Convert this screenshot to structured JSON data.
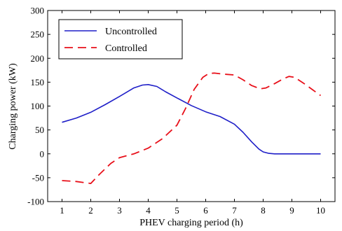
{
  "chart_data": {
    "type": "line",
    "title": "",
    "xlabel": "PHEV charging period (h)",
    "ylabel": "Charging power (kW)",
    "xlim": [
      0.5,
      10.5
    ],
    "ylim": [
      -100,
      300
    ],
    "xticks": [
      1,
      2,
      3,
      4,
      5,
      6,
      7,
      8,
      9,
      10
    ],
    "yticks": [
      -100,
      -50,
      0,
      50,
      100,
      150,
      200,
      250,
      300
    ],
    "grid": false,
    "legend_position": "top-left",
    "series": [
      {
        "name": "Uncontrolled",
        "color": "#1f1fc8",
        "style": "solid",
        "x": [
          1,
          1.5,
          2,
          2.5,
          3,
          3.5,
          3.8,
          4,
          4.3,
          4.6,
          5,
          5.5,
          6,
          6.5,
          7,
          7.3,
          7.6,
          7.85,
          8,
          8.2,
          8.4,
          8.7,
          9,
          9.5,
          10
        ],
        "y": [
          66,
          75,
          87,
          103,
          120,
          138,
          144,
          145,
          141,
          130,
          117,
          101,
          88,
          78,
          62,
          45,
          25,
          10,
          4,
          1,
          0,
          0,
          0,
          0,
          0
        ]
      },
      {
        "name": "Controlled",
        "color": "#e8101a",
        "style": "dashed",
        "x": [
          1,
          1.5,
          2,
          2.3,
          2.7,
          3,
          3.5,
          4,
          4.5,
          5,
          5.3,
          5.6,
          5.9,
          6.1,
          6.3,
          6.6,
          7,
          7.3,
          7.6,
          7.9,
          8.1,
          8.4,
          8.7,
          8.9,
          9.1,
          9.4,
          9.7,
          10
        ],
        "y": [
          -56,
          -58,
          -62,
          -43,
          -20,
          -8,
          0,
          12,
          32,
          60,
          95,
          135,
          160,
          168,
          169,
          167,
          165,
          155,
          143,
          136,
          138,
          147,
          157,
          162,
          160,
          148,
          135,
          122
        ]
      }
    ]
  }
}
